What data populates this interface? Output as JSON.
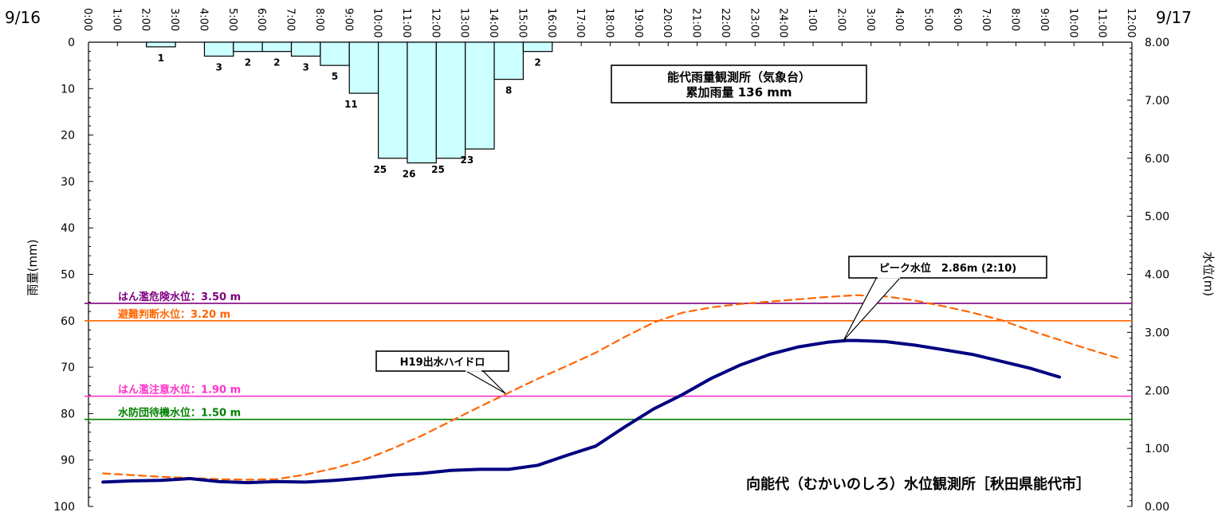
{
  "chart_data": {
    "type": "bar+line",
    "date_left": "9/16",
    "date_right": "9/17",
    "x_hours": [
      "0:00",
      "1:00",
      "2:00",
      "3:00",
      "4:00",
      "5:00",
      "6:00",
      "7:00",
      "8:00",
      "9:00",
      "10:00",
      "11:00",
      "12:00",
      "13:00",
      "14:00",
      "15:00",
      "16:00",
      "17:00",
      "18:00",
      "19:00",
      "20:00",
      "21:00",
      "22:00",
      "23:00",
      "24:00",
      "1:00",
      "2:00",
      "3:00",
      "4:00",
      "5:00",
      "6:00",
      "7:00",
      "8:00",
      "9:00",
      "10:00",
      "11:00",
      "12:00"
    ],
    "y_left": {
      "label": "雨量(mm)",
      "min": 0,
      "max": 100,
      "inverted": true,
      "ticks": [
        "0",
        "10",
        "20",
        "30",
        "40",
        "50",
        "60",
        "70",
        "80",
        "90",
        "100"
      ]
    },
    "y_right": {
      "label": "水位(m)",
      "min": 0,
      "max": 8,
      "ticks": [
        "8.00",
        "7.00",
        "6.00",
        "5.00",
        "4.00",
        "3.00",
        "2.00",
        "1.00",
        "0.00"
      ]
    },
    "rainfall": [
      {
        "hour": 3,
        "value": 1
      },
      {
        "hour": 5,
        "value": 3
      },
      {
        "hour": 6,
        "value": 2
      },
      {
        "hour": 7,
        "value": 2
      },
      {
        "hour": 8,
        "value": 3
      },
      {
        "hour": 9,
        "value": 5
      },
      {
        "hour": 10,
        "value": 11
      },
      {
        "hour": 11,
        "value": 25
      },
      {
        "hour": 12,
        "value": 26
      },
      {
        "hour": 13,
        "value": 25
      },
      {
        "hour": 14,
        "value": 23
      },
      {
        "hour": 15,
        "value": 8
      },
      {
        "hour": 16,
        "value": 2
      }
    ],
    "rain_box": {
      "line1": "能代雨量観測所（気象台）",
      "line2": "累加雨量 136 mm"
    },
    "thresholds": [
      {
        "label": "はん濫危険水位：3.50 m",
        "value": 3.5,
        "color": "#800080"
      },
      {
        "label": "避難判断水位：3.20 m",
        "value": 3.2,
        "color": "#ff6600"
      },
      {
        "label": "はん濫注意水位：1.90 m",
        "value": 1.9,
        "color": "#ff33cc"
      },
      {
        "label": "水防団待機水位：1.50 m",
        "value": 1.5,
        "color": "#008000"
      }
    ],
    "series": [
      {
        "name": "",
        "style": "solid",
        "color": "#000080",
        "points": [
          [
            0.5,
            0.42
          ],
          [
            1.5,
            0.44
          ],
          [
            2.5,
            0.45
          ],
          [
            3.5,
            0.48
          ],
          [
            4.5,
            0.43
          ],
          [
            5.5,
            0.41
          ],
          [
            6.5,
            0.43
          ],
          [
            7.5,
            0.42
          ],
          [
            8.5,
            0.45
          ],
          [
            9.5,
            0.49
          ],
          [
            10.5,
            0.54
          ],
          [
            11.5,
            0.57
          ],
          [
            12.5,
            0.62
          ],
          [
            13.5,
            0.64
          ],
          [
            14.5,
            0.64
          ],
          [
            15.5,
            0.71
          ],
          [
            16.5,
            0.88
          ],
          [
            17.5,
            1.04
          ],
          [
            18.5,
            1.37
          ],
          [
            19.5,
            1.68
          ],
          [
            20.5,
            1.93
          ],
          [
            21.5,
            2.21
          ],
          [
            22.5,
            2.44
          ],
          [
            23.5,
            2.62
          ],
          [
            24.5,
            2.75
          ],
          [
            25.5,
            2.83
          ],
          [
            26.17,
            2.86
          ],
          [
            26.5,
            2.86
          ],
          [
            27.5,
            2.84
          ],
          [
            28.5,
            2.78
          ],
          [
            29.5,
            2.7
          ],
          [
            30.5,
            2.62
          ],
          [
            31.5,
            2.5
          ],
          [
            32.5,
            2.38
          ],
          [
            33.5,
            2.23
          ]
        ]
      },
      {
        "name": "H19出水ハイドロ",
        "style": "dashed",
        "color": "#ff6600",
        "points": [
          [
            0.5,
            0.57
          ],
          [
            1.5,
            0.54
          ],
          [
            2.5,
            0.51
          ],
          [
            3.5,
            0.49
          ],
          [
            4.5,
            0.47
          ],
          [
            5.5,
            0.46
          ],
          [
            6.5,
            0.47
          ],
          [
            7.5,
            0.55
          ],
          [
            8.5,
            0.66
          ],
          [
            9.5,
            0.8
          ],
          [
            10.5,
            1.0
          ],
          [
            11.5,
            1.22
          ],
          [
            12.5,
            1.47
          ],
          [
            13.5,
            1.72
          ],
          [
            14.5,
            1.96
          ],
          [
            15.5,
            2.2
          ],
          [
            16.5,
            2.42
          ],
          [
            17.5,
            2.65
          ],
          [
            18.5,
            2.92
          ],
          [
            19.5,
            3.17
          ],
          [
            20.5,
            3.34
          ],
          [
            21.5,
            3.43
          ],
          [
            22.5,
            3.49
          ],
          [
            23.5,
            3.53
          ],
          [
            24.5,
            3.57
          ],
          [
            25.5,
            3.61
          ],
          [
            26.5,
            3.64
          ],
          [
            27.5,
            3.62
          ],
          [
            28.5,
            3.55
          ],
          [
            29.5,
            3.45
          ],
          [
            30.5,
            3.34
          ],
          [
            31.5,
            3.21
          ],
          [
            32.5,
            3.03
          ],
          [
            33.5,
            2.87
          ],
          [
            34.5,
            2.71
          ],
          [
            35.5,
            2.56
          ]
        ]
      }
    ],
    "annotations": {
      "peak": "ピーク水位　2.86m (2:10)",
      "hydro": "H19出水ハイドロ",
      "station": "向能代（むかいのしろ）水位観測所［秋田県能代市］"
    }
  }
}
